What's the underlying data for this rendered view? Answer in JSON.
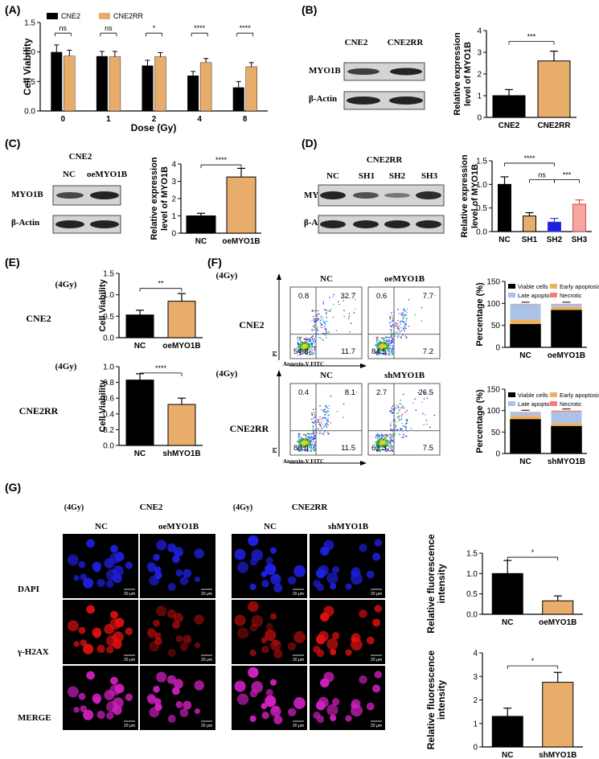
{
  "panels": {
    "A": "(A)",
    "B": "(B)",
    "C": "(C)",
    "D": "(D)",
    "E": "(E)",
    "F": "(F)",
    "G": "(G)"
  },
  "labels": {
    "cne2": "CNE2",
    "cne2rr": "CNE2RR",
    "nc": "NC",
    "oemyo1b": "oeMYO1B",
    "shmyo1b": "shMYO1B",
    "myo1b": "MYO1B",
    "actin": "β-Actin",
    "sh1": "SH1",
    "sh2": "SH2",
    "sh3": "SH3",
    "dose4": "(4Gy)",
    "pi": "PI",
    "annexin": "Annexin-V  FITC",
    "dapi": "DAPI",
    "h2ax": "γ-H2AX",
    "merge": "MERGE",
    "scalebar": "20 μm"
  },
  "quadrants": {
    "cne2_nc": [
      "0.8",
      "32.7",
      "54.8",
      "11.7"
    ],
    "cne2_oe": [
      "0.6",
      "7.7",
      "84.5",
      "7.2"
    ],
    "cne2rr_nc": [
      "0.4",
      "8.1",
      "80.0",
      "11.5"
    ],
    "cne2rr_sh": [
      "2.7",
      "26.5",
      "63.3",
      "7.5"
    ]
  },
  "colors": {
    "black": "#000000",
    "orange": "#e8ad6a",
    "blue": "#1f1fe0",
    "red": "#e01010",
    "magenta": "#d020c0",
    "fviable": "#000000",
    "fearly": "#f0b060",
    "flate": "#a9c2e6",
    "fnecrotic": "#f08080",
    "sh3": "#f4a6a0",
    "sh3edge": "#d05050"
  },
  "chart_data": [
    {
      "id": "A",
      "type": "bar",
      "title": "",
      "xlabel": "Dose (Gy)",
      "ylabel": "Cell Viability",
      "categories": [
        "0",
        "1",
        "2",
        "4",
        "8"
      ],
      "ylim": [
        0,
        1.5
      ],
      "yticks": [
        "0.0",
        "0.5",
        "1.0",
        "1.5"
      ],
      "legend": "top-left",
      "series": [
        {
          "name": "CNE2",
          "values": [
            1.0,
            0.93,
            0.77,
            0.6,
            0.4
          ],
          "errors": [
            0.12,
            0.08,
            0.09,
            0.07,
            0.1
          ]
        },
        {
          "name": "CNE2RR",
          "values": [
            0.93,
            0.92,
            0.92,
            0.82,
            0.75
          ],
          "errors": [
            0.1,
            0.09,
            0.07,
            0.07,
            0.07
          ]
        }
      ],
      "annotations": [
        "ns",
        "ns",
        "*",
        "****",
        "****"
      ]
    },
    {
      "id": "B",
      "type": "bar",
      "ylabel": "Relative expression level of MYO1B",
      "categories": [
        "CNE2",
        "CNE2RR"
      ],
      "values": [
        1.0,
        2.6
      ],
      "errors": [
        0.28,
        0.45
      ],
      "ylim": [
        0,
        4
      ],
      "yticks": [
        "0",
        "1",
        "2",
        "3",
        "4"
      ],
      "annotations": [
        "***"
      ]
    },
    {
      "id": "C",
      "type": "bar",
      "ylabel": "Relative expression level of MYO1B",
      "categories": [
        "NC",
        "oeMYO1B"
      ],
      "values": [
        1.0,
        3.25
      ],
      "errors": [
        0.15,
        0.5
      ],
      "ylim": [
        0,
        4
      ],
      "yticks": [
        "0",
        "1",
        "2",
        "3",
        "4"
      ],
      "annotations": [
        "****"
      ]
    },
    {
      "id": "D",
      "type": "bar",
      "ylabel": "Relative expression level of MYO1B",
      "categories": [
        "NC",
        "SH1",
        "SH2",
        "SH3"
      ],
      "values": [
        1.0,
        0.33,
        0.2,
        0.58
      ],
      "errors": [
        0.16,
        0.07,
        0.08,
        0.09
      ],
      "ylim": [
        0,
        1.5
      ],
      "yticks": [
        "0.0",
        "0.5",
        "1.0",
        "1.5"
      ],
      "annotations": [
        "****",
        "ns",
        "***"
      ]
    },
    {
      "id": "E1",
      "type": "bar",
      "ylabel": "Cell Viability",
      "categories": [
        "NC",
        "oeMYO1B"
      ],
      "values": [
        0.53,
        0.85
      ],
      "errors": [
        0.11,
        0.18
      ],
      "ylim": [
        0,
        1.5
      ],
      "yticks": [
        "0.0",
        "0.5",
        "1.0",
        "1.5"
      ],
      "annotations": [
        "**"
      ]
    },
    {
      "id": "E2",
      "type": "bar",
      "ylabel": "Cell Viability",
      "categories": [
        "NC",
        "shMYO1B"
      ],
      "values": [
        0.83,
        0.52
      ],
      "errors": [
        0.08,
        0.08
      ],
      "ylim": [
        0,
        1.0
      ],
      "yticks": [
        "0.0",
        "0.2",
        "0.4",
        "0.6",
        "0.8",
        "1.0"
      ],
      "annotations": [
        "****"
      ]
    },
    {
      "id": "F1",
      "type": "bar",
      "ylabel": "Percentage (%)",
      "categories": [
        "NC",
        "oeMYO1B"
      ],
      "ylim": [
        0,
        150
      ],
      "yticks": [
        "0",
        "50",
        "100",
        "150"
      ],
      "legend": "top",
      "series": [
        {
          "name": "Viable cells",
          "values": [
            53,
            85
          ]
        },
        {
          "name": "Early apoptosis",
          "values": [
            10,
            7
          ]
        },
        {
          "name": "Late apoptosis",
          "values": [
            35,
            6
          ]
        },
        {
          "name": "Necrotic",
          "values": [
            1,
            1
          ]
        }
      ]
    },
    {
      "id": "F2",
      "type": "bar",
      "ylabel": "Percentage (%)",
      "categories": [
        "NC",
        "shMYO1B"
      ],
      "ylim": [
        0,
        150
      ],
      "yticks": [
        "0",
        "50",
        "100",
        "150"
      ],
      "legend": "top",
      "series": [
        {
          "name": "Viable cells",
          "values": [
            80,
            64
          ]
        },
        {
          "name": "Early apoptosis",
          "values": [
            8,
            7
          ]
        },
        {
          "name": "Late apoptosis",
          "values": [
            8,
            26
          ]
        },
        {
          "name": "Necrotic",
          "values": [
            1,
            3
          ]
        }
      ]
    },
    {
      "id": "G1",
      "type": "bar",
      "ylabel": "Relative fluorescence intensity",
      "categories": [
        "NC",
        "oeMYO1B"
      ],
      "values": [
        1.0,
        0.33
      ],
      "errors": [
        0.32,
        0.12
      ],
      "ylim": [
        0,
        1.5
      ],
      "yticks": [
        "0.0",
        "0.5",
        "1.0",
        "1.5"
      ],
      "annotations": [
        "*"
      ]
    },
    {
      "id": "G2",
      "type": "bar",
      "ylabel": "Relative fluorescence intensity",
      "categories": [
        "NC",
        "shMYO1B"
      ],
      "values": [
        1.3,
        2.75
      ],
      "errors": [
        0.35,
        0.42
      ],
      "ylim": [
        0,
        4
      ],
      "yticks": [
        "0",
        "1",
        "2",
        "3",
        "4"
      ],
      "annotations": [
        "*"
      ]
    }
  ]
}
